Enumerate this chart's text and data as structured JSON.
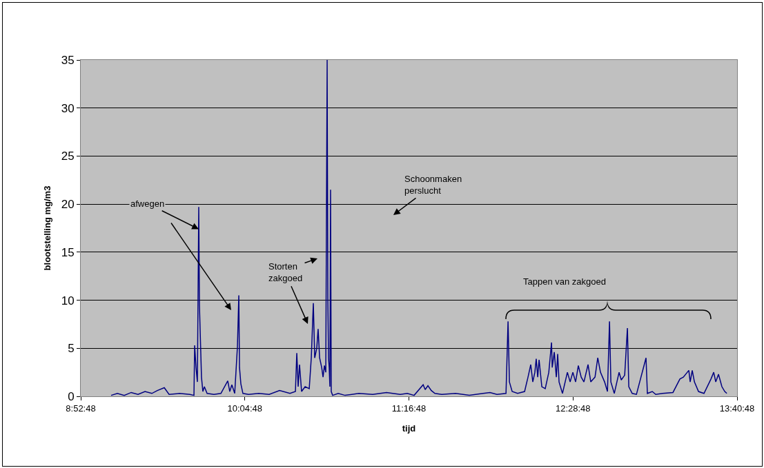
{
  "chart_data": {
    "type": "line",
    "xlabel": "tijd",
    "ylabel": "blootstelling mg/m3",
    "x": [
      9.102,
      9.148,
      9.198,
      9.249,
      9.299,
      9.35,
      9.4,
      9.44,
      9.491,
      9.526,
      9.602,
      9.678,
      9.708,
      9.713,
      9.723,
      9.733,
      9.743,
      9.748,
      9.753,
      9.763,
      9.773,
      9.784,
      9.804,
      9.854,
      9.905,
      9.955,
      9.97,
      9.985,
      10.006,
      10.026,
      10.036,
      10.041,
      10.051,
      10.066,
      10.107,
      10.182,
      10.258,
      10.334,
      10.41,
      10.45,
      10.46,
      10.47,
      10.48,
      10.495,
      10.521,
      10.551,
      10.566,
      10.581,
      10.591,
      10.606,
      10.616,
      10.627,
      10.642,
      10.652,
      10.662,
      10.672,
      10.682,
      10.687,
      10.692,
      10.697,
      10.702,
      10.707,
      10.712,
      10.722,
      10.763,
      10.813,
      10.914,
      11.015,
      11.116,
      11.217,
      11.268,
      11.318,
      11.384,
      11.399,
      11.419,
      11.444,
      11.47,
      11.52,
      11.621,
      11.722,
      11.823,
      11.873,
      11.924,
      11.99,
      12.005,
      12.015,
      12.035,
      12.075,
      12.126,
      12.151,
      12.171,
      12.186,
      12.201,
      12.211,
      12.222,
      12.232,
      12.252,
      12.277,
      12.303,
      12.323,
      12.328,
      12.343,
      12.358,
      12.368,
      12.378,
      12.403,
      12.439,
      12.459,
      12.479,
      12.499,
      12.519,
      12.54,
      12.56,
      12.59,
      12.61,
      12.641,
      12.661,
      12.681,
      12.711,
      12.732,
      12.747,
      12.757,
      12.782,
      12.817,
      12.833,
      12.858,
      12.878,
      12.888,
      12.913,
      12.944,
      13.014,
      13.024,
      13.06,
      13.085,
      13.135,
      13.211,
      13.262,
      13.287,
      13.327,
      13.337,
      13.352,
      13.368,
      13.398,
      13.438,
      13.489,
      13.509,
      13.524,
      13.544,
      13.569,
      13.59,
      13.605
    ],
    "series": [
      {
        "color": "#000080",
        "values": [
          0.1,
          0.3,
          0.1,
          0.4,
          0.2,
          0.5,
          0.3,
          0.6,
          0.9,
          0.2,
          0.3,
          0.2,
          0.1,
          5.3,
          3,
          1.5,
          19.7,
          9.5,
          7,
          2,
          0.5,
          1,
          0.3,
          0.2,
          0.3,
          1.6,
          0.5,
          1.2,
          0.3,
          5.2,
          10.5,
          3,
          1.3,
          0.3,
          0.2,
          0.3,
          0.2,
          0.6,
          0.3,
          0.5,
          4.5,
          1,
          3.3,
          0.5,
          1,
          0.8,
          4,
          9.7,
          4,
          5,
          7,
          4,
          3,
          2,
          3.2,
          2.5,
          35,
          10.2,
          4,
          3,
          1,
          21.5,
          0.5,
          0.1,
          0.3,
          0.1,
          0.3,
          0.2,
          0.4,
          0.2,
          0.3,
          0.1,
          1.2,
          0.7,
          1.1,
          0.6,
          0.3,
          0.2,
          0.3,
          0.1,
          0.3,
          0.4,
          0.2,
          0.3,
          7.8,
          1.5,
          0.5,
          0.3,
          0.5,
          2,
          3.3,
          1.5,
          2.5,
          3.9,
          2,
          3.8,
          1,
          0.8,
          2.5,
          5.6,
          3,
          4.6,
          2,
          4.4,
          1.5,
          0.3,
          2.5,
          1.5,
          2.5,
          1.5,
          3.2,
          2,
          1.5,
          3.3,
          1.5,
          2,
          4,
          2.5,
          1.5,
          0.5,
          7.8,
          1.5,
          0.3,
          2.5,
          1.7,
          2.2,
          7.1,
          1,
          0.3,
          0.2,
          4,
          0.3,
          0.5,
          0.2,
          0.3,
          0.4,
          1.8,
          2,
          2.7,
          1.5,
          2.7,
          1.5,
          0.5,
          0.3,
          1.8,
          2.5,
          1.5,
          2.3,
          1,
          0.5,
          0.3
        ]
      }
    ],
    "xlim": [
      8.88,
      13.68
    ],
    "xticks": [
      {
        "value": 8.88,
        "label": "8:52:48"
      },
      {
        "value": 10.08,
        "label": "10:04:48"
      },
      {
        "value": 11.28,
        "label": "11:16:48"
      },
      {
        "value": 12.48,
        "label": "12:28:48"
      },
      {
        "value": 13.68,
        "label": "13:40:48"
      }
    ],
    "ylim": [
      0,
      35
    ],
    "yticks": [
      0,
      5,
      10,
      15,
      20,
      25,
      30,
      35
    ],
    "grid": "y",
    "marker": "none",
    "line_style": "solid",
    "annotations": [
      {
        "text": "afwegen",
        "x": 9.743,
        "y": 17.4
      },
      "Storten\nzakgoed",
      "Schoonmaken\nperslucht",
      "Tappen van zakgoed"
    ]
  }
}
